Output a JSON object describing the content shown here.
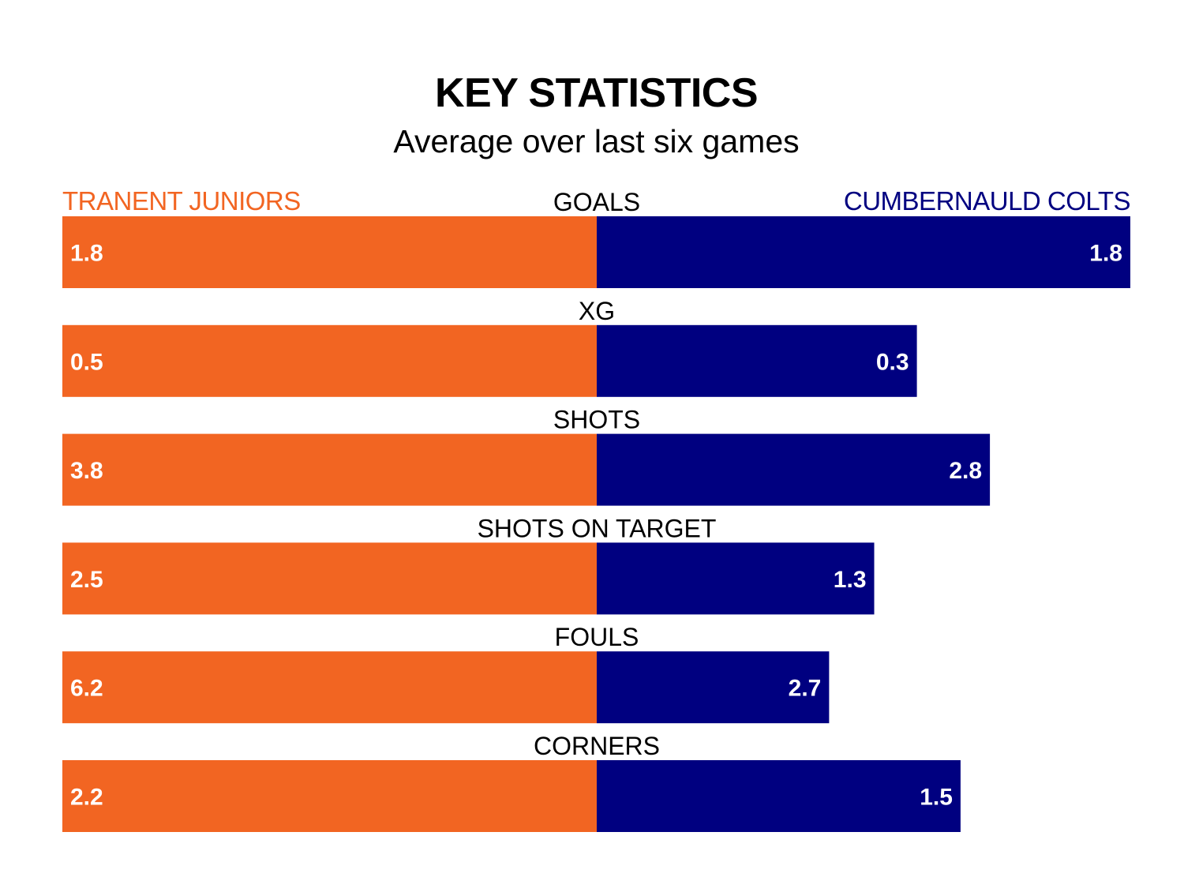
{
  "title": "KEY STATISTICS",
  "subtitle": "Average over last six games",
  "colors": {
    "home": "#F26522",
    "away": "#000080",
    "text": "#000000",
    "label_light": "#ffffff"
  },
  "chart_data": {
    "type": "bar",
    "orientation": "horizontal-stacked-share",
    "title": "KEY STATISTICS",
    "subtitle": "Average over last six games",
    "series": [
      {
        "name": "TRANENT JUNIORS",
        "values": [
          1.8,
          0.5,
          3.8,
          2.5,
          6.2,
          2.2
        ]
      },
      {
        "name": "CUMBERNAULD COLTS",
        "values": [
          1.8,
          0.3,
          2.8,
          1.3,
          2.7,
          1.5
        ]
      }
    ],
    "categories": [
      "GOALS",
      "XG",
      "SHOTS",
      "SHOTS ON TARGET",
      "FOULS",
      "CORNERS"
    ],
    "value_labels": {
      "home": [
        "1.8",
        "0.5",
        "3.8",
        "2.5",
        "6.2",
        "2.2"
      ],
      "away": [
        "1.8",
        "0.3",
        "2.8",
        "1.3",
        "2.7",
        "1.5"
      ]
    }
  }
}
